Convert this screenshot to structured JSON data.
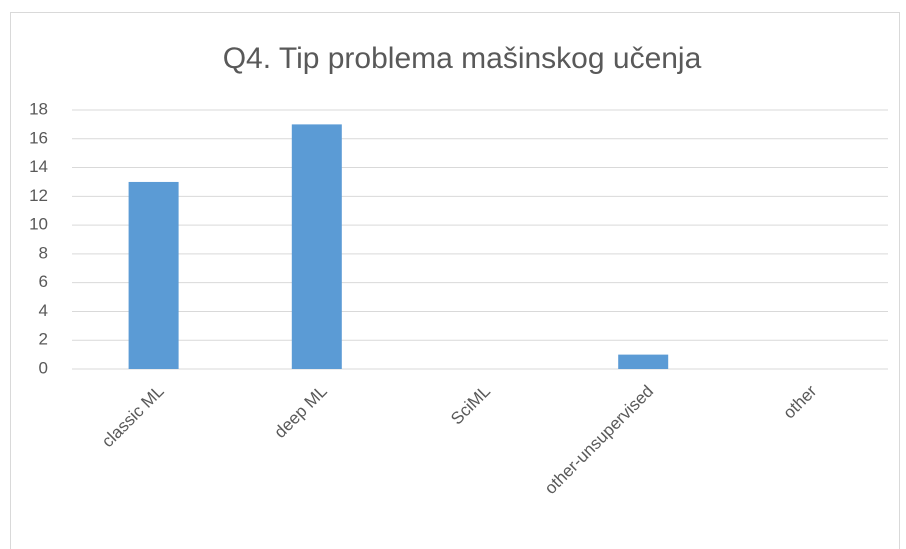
{
  "chart_data": {
    "type": "bar",
    "title": "Q4. Tip problema mašinskog učenja",
    "categories": [
      "classic ML",
      "deep ML",
      "SciML",
      "other-unsupervised",
      "other"
    ],
    "values": [
      13,
      17,
      0,
      1,
      0
    ],
    "color": "#5b9bd5",
    "ylim": [
      0,
      18
    ],
    "yticks": [
      0,
      2,
      4,
      6,
      8,
      10,
      12,
      14,
      16,
      18
    ],
    "grid": true
  }
}
